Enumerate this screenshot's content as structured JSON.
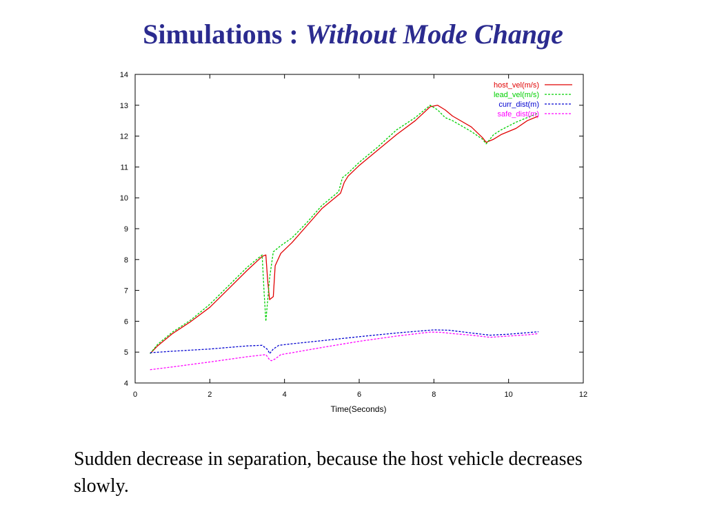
{
  "slide": {
    "title_plain": "Simulations : ",
    "title_italic": "Without Mode Change",
    "caption": "Sudden decrease in separation, because the host vehicle decreases slowly."
  },
  "chart_data": {
    "type": "line",
    "title": "",
    "xlabel": "Time(Seconds)",
    "ylabel": "",
    "xlim": [
      0,
      12
    ],
    "ylim": [
      4,
      14
    ],
    "xticks": [
      0,
      2,
      4,
      6,
      8,
      10,
      12
    ],
    "yticks": [
      4,
      5,
      6,
      7,
      8,
      9,
      10,
      11,
      12,
      13,
      14
    ],
    "grid": false,
    "legend_position": "top-right",
    "series": [
      {
        "name": "host_vel(m/s)",
        "color": "#e00000",
        "dash": "solid",
        "x": [
          0.4,
          0.6,
          1.0,
          1.5,
          2.0,
          2.5,
          3.0,
          3.4,
          3.5,
          3.55,
          3.6,
          3.7,
          3.75,
          3.9,
          4.2,
          4.6,
          5.0,
          5.5,
          5.6,
          5.7,
          6.0,
          6.5,
          7.0,
          7.5,
          7.9,
          8.1,
          8.3,
          8.5,
          9.0,
          9.3,
          9.4,
          9.6,
          9.8,
          10.2,
          10.5,
          10.8
        ],
        "y": [
          4.95,
          5.2,
          5.6,
          6.0,
          6.45,
          7.05,
          7.65,
          8.1,
          8.15,
          7.3,
          6.7,
          6.8,
          7.8,
          8.2,
          8.55,
          9.1,
          9.65,
          10.15,
          10.5,
          10.7,
          11.05,
          11.55,
          12.05,
          12.5,
          12.95,
          13.0,
          12.85,
          12.65,
          12.3,
          11.95,
          11.8,
          11.9,
          12.05,
          12.25,
          12.5,
          12.65
        ]
      },
      {
        "name": "lead_vel(m/s)",
        "color": "#00d000",
        "dash": "dashed",
        "x": [
          0.4,
          0.6,
          1.0,
          1.5,
          2.0,
          2.5,
          3.0,
          3.4,
          3.45,
          3.5,
          3.6,
          3.7,
          3.9,
          4.2,
          4.6,
          5.0,
          5.45,
          5.55,
          5.7,
          6.0,
          6.5,
          7.0,
          7.5,
          7.9,
          8.1,
          8.3,
          8.5,
          9.0,
          9.3,
          9.4,
          9.6,
          9.8,
          10.2,
          10.5,
          10.8
        ],
        "y": [
          4.95,
          5.25,
          5.65,
          6.05,
          6.55,
          7.15,
          7.75,
          8.15,
          7.0,
          6.0,
          7.4,
          8.25,
          8.45,
          8.7,
          9.2,
          9.75,
          10.2,
          10.65,
          10.8,
          11.15,
          11.65,
          12.2,
          12.6,
          13.0,
          12.85,
          12.6,
          12.5,
          12.15,
          11.9,
          11.75,
          12.05,
          12.2,
          12.45,
          12.6,
          12.75
        ]
      },
      {
        "name": "curr_dist(m)",
        "color": "#0000d0",
        "dash": "dashed",
        "x": [
          0.4,
          1.0,
          2.0,
          3.0,
          3.4,
          3.55,
          3.6,
          3.7,
          3.85,
          4.2,
          5.0,
          6.0,
          7.0,
          8.0,
          8.4,
          9.0,
          9.5,
          10.0,
          10.5,
          10.8
        ],
        "y": [
          4.98,
          5.03,
          5.1,
          5.2,
          5.22,
          5.08,
          4.95,
          5.1,
          5.22,
          5.27,
          5.37,
          5.5,
          5.62,
          5.72,
          5.71,
          5.62,
          5.55,
          5.58,
          5.63,
          5.66
        ]
      },
      {
        "name": "safe_dist(m)",
        "color": "#ff00ff",
        "dash": "dashed",
        "x": [
          0.4,
          1.0,
          2.0,
          3.0,
          3.5,
          3.6,
          3.65,
          3.75,
          3.9,
          4.2,
          5.0,
          6.0,
          7.0,
          7.9,
          8.2,
          8.5,
          9.0,
          9.5,
          10.0,
          10.5,
          10.8
        ],
        "y": [
          4.43,
          4.52,
          4.68,
          4.85,
          4.92,
          4.75,
          4.72,
          4.78,
          4.92,
          4.98,
          5.15,
          5.35,
          5.52,
          5.65,
          5.64,
          5.6,
          5.55,
          5.48,
          5.52,
          5.56,
          5.6
        ]
      }
    ]
  }
}
